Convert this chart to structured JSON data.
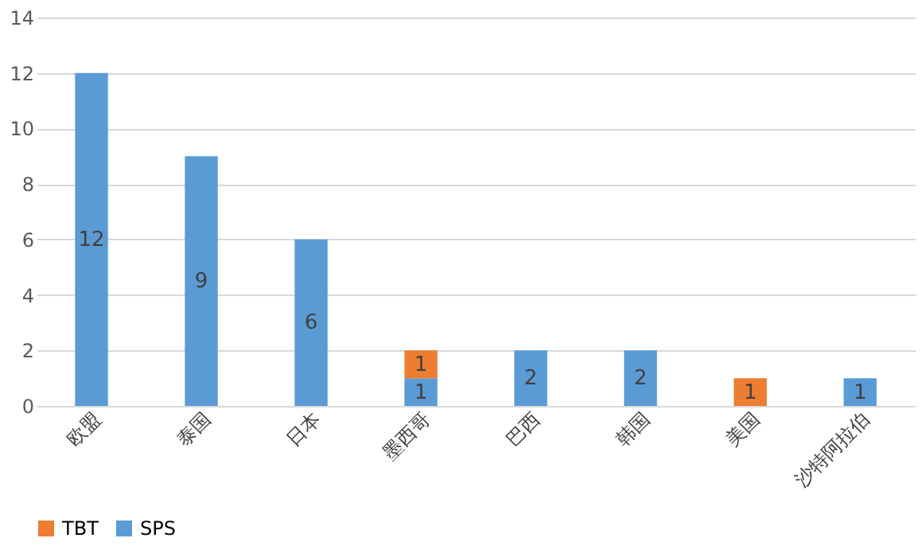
{
  "chart_data": {
    "type": "bar",
    "stacked": true,
    "categories": [
      "欧盟",
      "泰国",
      "日本",
      "墨西哥",
      "巴西",
      "韩国",
      "美国",
      "沙特阿拉伯"
    ],
    "series": [
      {
        "name": "SPS",
        "color": "#5b9bd5",
        "values": [
          12,
          9,
          6,
          1,
          2,
          2,
          0,
          1
        ],
        "value_labels": [
          "12",
          "9",
          "6",
          "1",
          "2",
          "2",
          null,
          "1"
        ]
      },
      {
        "name": "TBT",
        "color": "#ed7d31",
        "values": [
          0,
          0,
          0,
          1,
          0,
          0,
          1,
          0
        ],
        "value_labels": [
          null,
          null,
          null,
          "1",
          null,
          null,
          "1",
          null
        ]
      }
    ],
    "ylim": [
      0,
      14
    ],
    "yticks": [
      0,
      2,
      4,
      6,
      8,
      10,
      12,
      14
    ],
    "grid": "y",
    "legend": "bottom"
  }
}
